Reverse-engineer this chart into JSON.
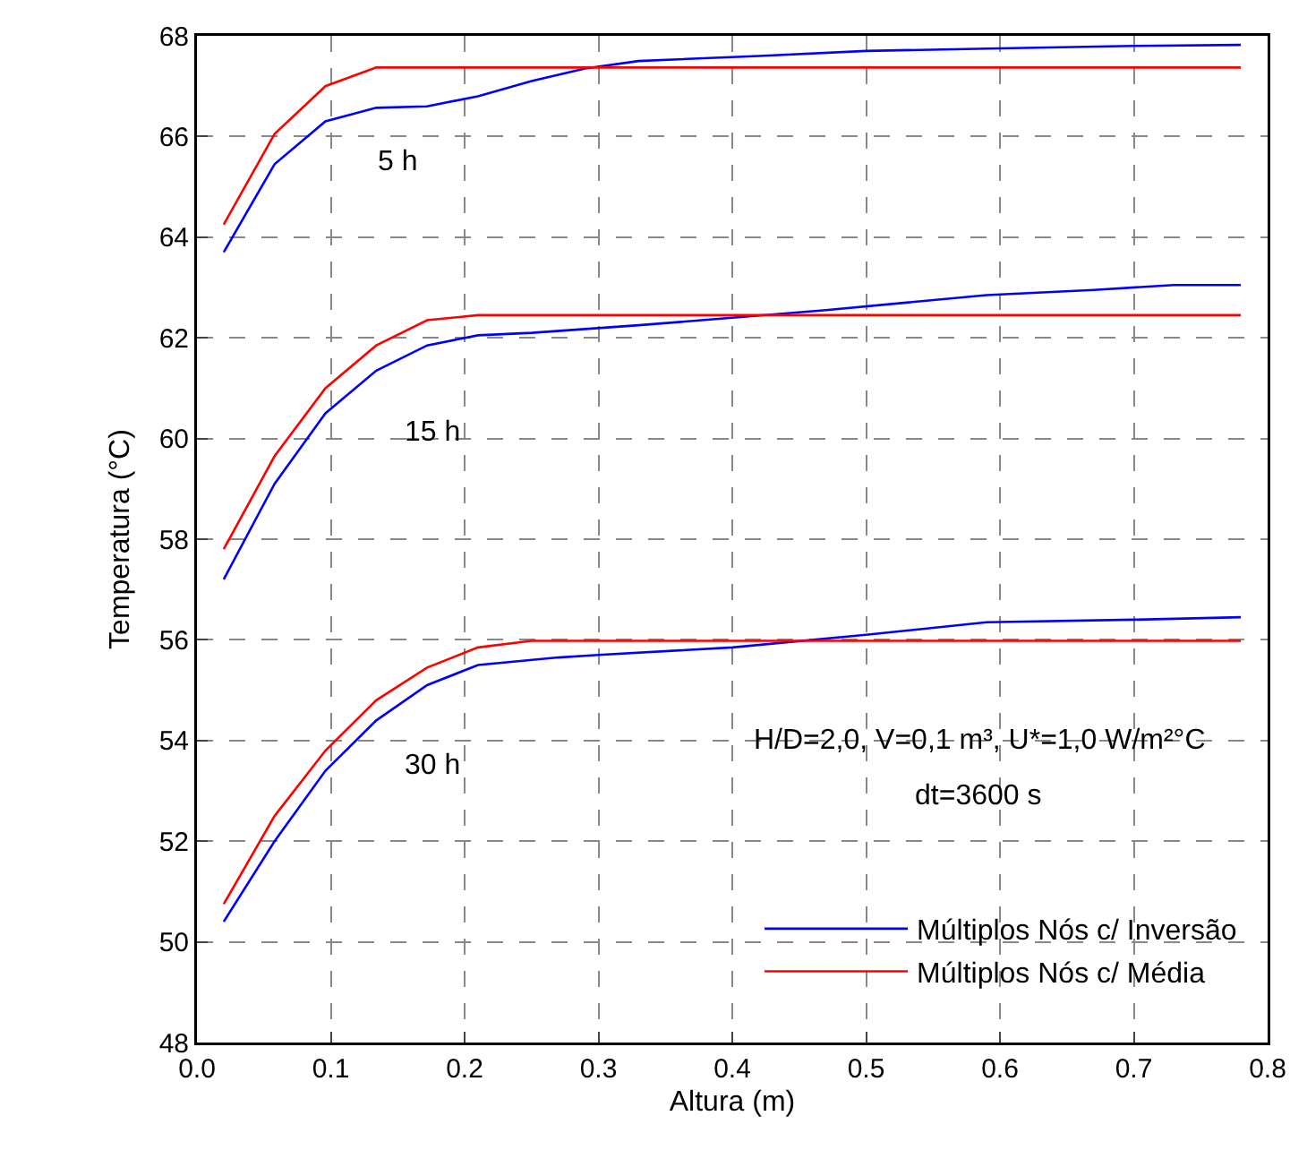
{
  "chart_data": {
    "type": "line",
    "xlabel": "Altura (m)",
    "ylabel": "Temperatura (°C)",
    "xlim": [
      0,
      0.8
    ],
    "xticks": [
      {
        "value": 0,
        "label": "0.0"
      },
      0.1,
      0.2,
      0.3,
      0.4,
      0.5,
      0.6,
      0.7,
      0.8
    ],
    "ylim": [
      48,
      68
    ],
    "yticks": [
      48,
      50,
      52,
      54,
      56,
      58,
      60,
      62,
      64,
      66,
      68
    ],
    "grid": true,
    "legend": "bottom right",
    "marker": "none",
    "line_style": "solid",
    "series": [
      {
        "name": "Múltiplos Nós c/ Inversão",
        "color": "#0000ff",
        "x": [
          0.02,
          0.058,
          0.096,
          0.134,
          0.172,
          0.21,
          0.25,
          0.29,
          0.33,
          0.42,
          0.5,
          0.6,
          0.7,
          0.78
        ],
        "values": [
          63.7,
          65.45,
          66.3,
          66.57,
          66.6,
          66.8,
          67.1,
          67.35,
          67.5,
          67.6,
          67.7,
          67.75,
          67.8,
          67.82
        ]
      },
      {
        "name": "Múltiplos Nós c/ Média",
        "color": "#ff0000",
        "x": [
          0.02,
          0.058,
          0.096,
          0.134,
          0.78
        ],
        "values": [
          64.25,
          66.05,
          67.0,
          67.37,
          67.37
        ]
      },
      {
        "color": "#0000ff",
        "x": [
          0.02,
          0.058,
          0.096,
          0.134,
          0.172,
          0.21,
          0.25,
          0.33,
          0.4,
          0.47,
          0.53,
          0.59,
          0.67,
          0.73,
          0.78
        ],
        "values": [
          57.2,
          59.1,
          60.5,
          61.35,
          61.85,
          62.05,
          62.1,
          62.25,
          62.4,
          62.55,
          62.7,
          62.85,
          62.95,
          63.05,
          63.05
        ]
      },
      {
        "color": "#ff0000",
        "x": [
          0.02,
          0.058,
          0.096,
          0.134,
          0.172,
          0.21,
          0.78
        ],
        "values": [
          57.8,
          59.65,
          61.0,
          61.85,
          62.35,
          62.45,
          62.45
        ]
      },
      {
        "color": "#0000ff",
        "x": [
          0.02,
          0.058,
          0.096,
          0.134,
          0.172,
          0.21,
          0.27,
          0.3,
          0.4,
          0.5,
          0.59,
          0.7,
          0.78
        ],
        "values": [
          50.4,
          52.0,
          53.4,
          54.4,
          55.1,
          55.5,
          55.65,
          55.7,
          55.85,
          56.1,
          56.35,
          56.4,
          56.45
        ]
      },
      {
        "color": "#ff0000",
        "x": [
          0.02,
          0.058,
          0.096,
          0.134,
          0.172,
          0.21,
          0.25,
          0.78
        ],
        "values": [
          50.75,
          52.5,
          53.8,
          54.8,
          55.45,
          55.85,
          55.98,
          55.98
        ]
      }
    ],
    "annotations": [
      "5 h",
      "15 h",
      "30 h",
      "H/D=2,0, V=0,1 m³, U*=1,0 W/m²°C",
      "dt=3600 s"
    ]
  }
}
